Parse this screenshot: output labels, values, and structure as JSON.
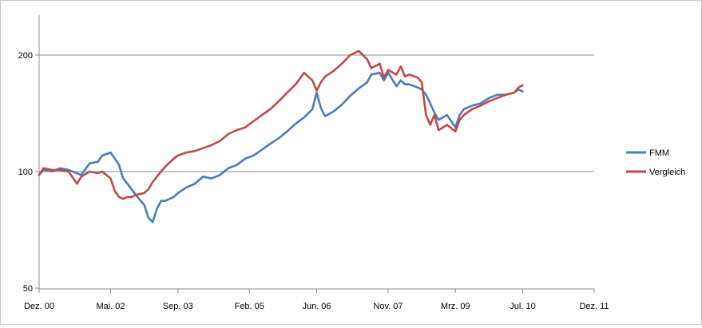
{
  "chart_data": {
    "type": "line",
    "y_scale": "log",
    "ylim": [
      50,
      250
    ],
    "y_ticks": [
      50,
      100,
      200
    ],
    "y_tick_labels": [
      "50",
      "100",
      "200"
    ],
    "xlim": [
      "2000-12",
      "2011-12"
    ],
    "x_ticks": [
      "2000-12",
      "2002-05",
      "2003-09",
      "2005-02",
      "2006-06",
      "2007-11",
      "2009-03",
      "2010-07",
      "2011-12"
    ],
    "x_tick_labels": [
      "Dez. 00",
      "Mai. 02",
      "Sep. 03",
      "Feb. 05",
      "Jun. 06",
      "Nov. 07",
      "Mrz. 09",
      "Jul. 10",
      "Dez. 11"
    ],
    "grid": "horizontal",
    "legend_position": "right",
    "series": [
      {
        "name": "FMM",
        "color": "#4a7ebb",
        "x": [
          "2000-12",
          "2001-01",
          "2001-03",
          "2001-05",
          "2001-07",
          "2001-09",
          "2001-10",
          "2001-12",
          "2002-02",
          "2002-03",
          "2002-05",
          "2002-06",
          "2002-07",
          "2002-08",
          "2002-09",
          "2002-10",
          "2002-11",
          "2003-01",
          "2003-02",
          "2003-03",
          "2003-04",
          "2003-05",
          "2003-06",
          "2003-08",
          "2003-09",
          "2003-11",
          "2004-01",
          "2004-03",
          "2004-05",
          "2004-07",
          "2004-09",
          "2004-11",
          "2005-01",
          "2005-03",
          "2005-05",
          "2005-07",
          "2005-09",
          "2005-11",
          "2006-01",
          "2006-03",
          "2006-05",
          "2006-06",
          "2006-07",
          "2006-08",
          "2006-10",
          "2006-12",
          "2007-02",
          "2007-04",
          "2007-06",
          "2007-07",
          "2007-09",
          "2007-10",
          "2007-11",
          "2008-01",
          "2008-02",
          "2008-03",
          "2008-04",
          "2008-06",
          "2008-07",
          "2008-08",
          "2008-09",
          "2008-10",
          "2008-11",
          "2009-01",
          "2009-03",
          "2009-04",
          "2009-05",
          "2009-07",
          "2009-09",
          "2009-11",
          "2010-01",
          "2010-03",
          "2010-05",
          "2010-06",
          "2010-07"
        ],
        "values": [
          98,
          101,
          100,
          102,
          101,
          99,
          98,
          105,
          106,
          110,
          112,
          108,
          104,
          96,
          93,
          90,
          87,
          82,
          76,
          74,
          80,
          84,
          84,
          86,
          88,
          91,
          93,
          97,
          96,
          98,
          102,
          104,
          108,
          110,
          114,
          118,
          122,
          127,
          133,
          138,
          145,
          160,
          146,
          139,
          143,
          149,
          157,
          164,
          170,
          178,
          180,
          172,
          180,
          166,
          172,
          168,
          168,
          165,
          163,
          158,
          150,
          142,
          136,
          140,
          130,
          140,
          145,
          148,
          150,
          155,
          158,
          158,
          160,
          163,
          161
        ]
      },
      {
        "name": "Vergleich",
        "color": "#be4b48",
        "x": [
          "2000-12",
          "2001-01",
          "2001-03",
          "2001-05",
          "2001-07",
          "2001-09",
          "2001-10",
          "2001-12",
          "2002-02",
          "2002-03",
          "2002-05",
          "2002-06",
          "2002-07",
          "2002-08",
          "2002-09",
          "2002-10",
          "2002-11",
          "2003-01",
          "2003-02",
          "2003-03",
          "2003-04",
          "2003-05",
          "2003-06",
          "2003-08",
          "2003-09",
          "2003-11",
          "2004-01",
          "2004-03",
          "2004-05",
          "2004-07",
          "2004-09",
          "2004-11",
          "2005-01",
          "2005-03",
          "2005-05",
          "2005-07",
          "2005-09",
          "2005-11",
          "2006-01",
          "2006-03",
          "2006-05",
          "2006-06",
          "2006-07",
          "2006-08",
          "2006-10",
          "2006-12",
          "2007-02",
          "2007-04",
          "2007-06",
          "2007-07",
          "2007-09",
          "2007-10",
          "2007-11",
          "2008-01",
          "2008-02",
          "2008-03",
          "2008-04",
          "2008-06",
          "2008-07",
          "2008-08",
          "2008-09",
          "2008-10",
          "2008-11",
          "2009-01",
          "2009-03",
          "2009-04",
          "2009-05",
          "2009-07",
          "2009-09",
          "2009-11",
          "2010-01",
          "2010-03",
          "2010-05",
          "2010-06",
          "2010-07"
        ],
        "values": [
          98,
          102,
          101,
          101,
          100,
          93,
          97,
          100,
          99,
          100,
          96,
          89,
          86,
          85,
          86,
          86,
          87,
          88,
          90,
          94,
          97,
          100,
          103,
          108,
          110,
          112,
          113,
          115,
          117,
          120,
          125,
          128,
          130,
          135,
          140,
          145,
          152,
          160,
          168,
          180,
          172,
          162,
          170,
          176,
          182,
          190,
          200,
          205,
          195,
          185,
          190,
          175,
          183,
          178,
          187,
          176,
          178,
          175,
          170,
          140,
          132,
          140,
          128,
          132,
          127,
          136,
          140,
          145,
          148,
          152,
          155,
          158,
          160,
          165,
          167
        ]
      }
    ]
  }
}
